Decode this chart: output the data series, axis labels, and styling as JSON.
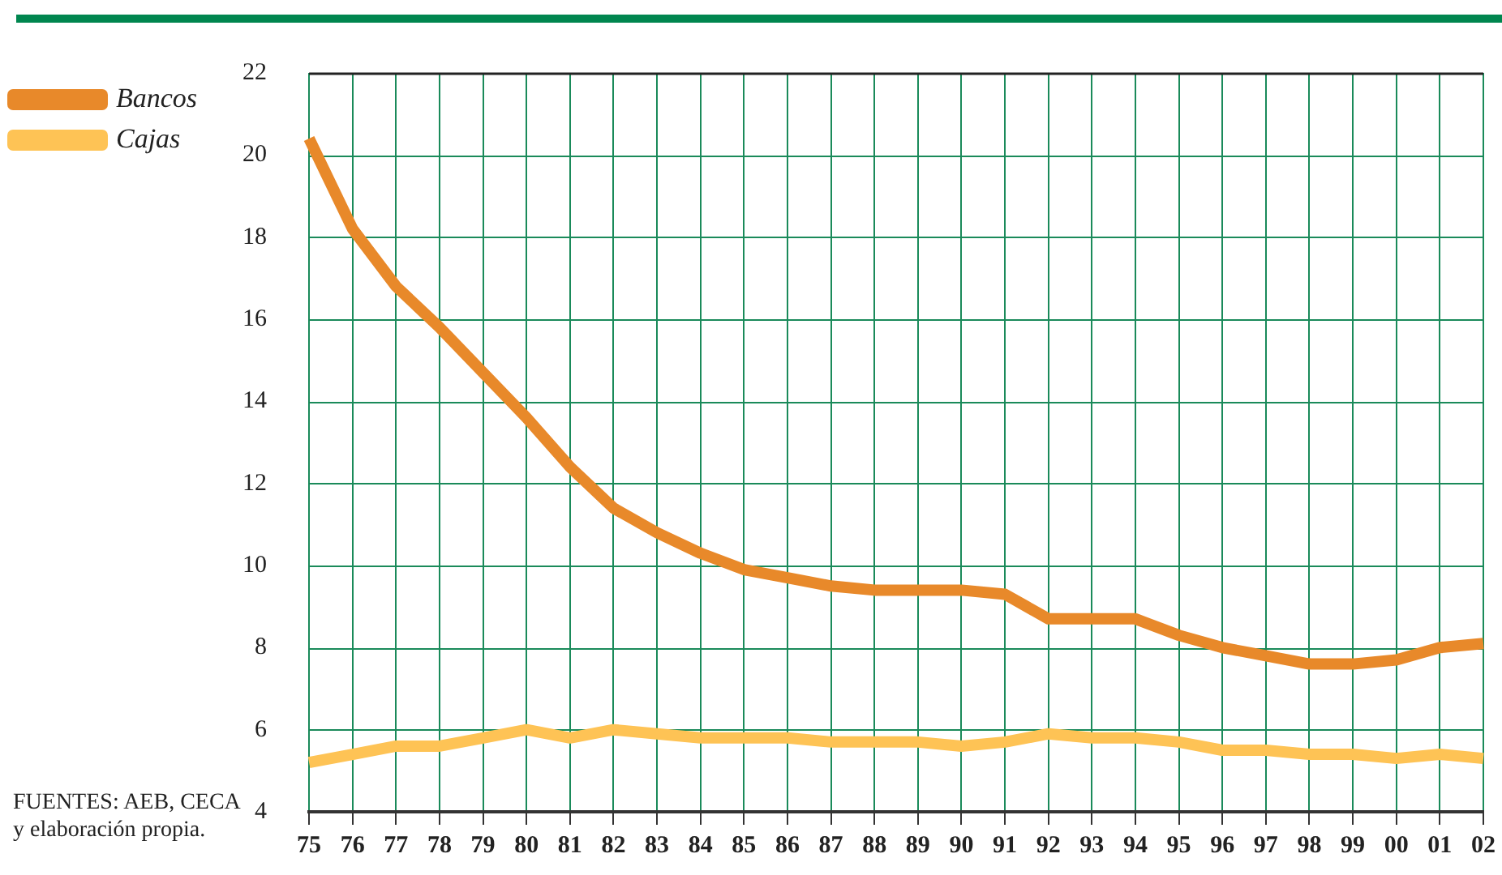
{
  "chart_data": {
    "type": "line",
    "categories": [
      "75",
      "76",
      "77",
      "78",
      "79",
      "80",
      "81",
      "82",
      "83",
      "84",
      "85",
      "86",
      "87",
      "88",
      "89",
      "90",
      "91",
      "92",
      "93",
      "94",
      "95",
      "96",
      "97",
      "98",
      "99",
      "00",
      "01",
      "02"
    ],
    "series": [
      {
        "name": "Bancos",
        "color": "#e8892a",
        "values": [
          20.4,
          18.2,
          16.8,
          15.8,
          14.7,
          13.6,
          12.4,
          11.4,
          10.8,
          10.3,
          9.9,
          9.7,
          9.5,
          9.4,
          9.4,
          9.4,
          9.3,
          8.7,
          8.7,
          8.7,
          8.3,
          8.0,
          7.8,
          7.6,
          7.6,
          7.7,
          8.0,
          8.1
        ]
      },
      {
        "name": "Cajas",
        "color": "#fec355",
        "values": [
          5.2,
          5.4,
          5.6,
          5.6,
          5.8,
          6.0,
          5.8,
          6.0,
          5.9,
          5.8,
          5.8,
          5.8,
          5.7,
          5.7,
          5.7,
          5.6,
          5.7,
          5.9,
          5.8,
          5.8,
          5.7,
          5.5,
          5.5,
          5.4,
          5.4,
          5.3,
          5.4,
          5.3
        ]
      }
    ],
    "ylim": [
      4,
      22
    ],
    "yticks": [
      4,
      6,
      8,
      10,
      12,
      14,
      16,
      18,
      20,
      22
    ],
    "grid": true,
    "legend": "top left",
    "marker": "none",
    "line_style": "solid",
    "annotations": [
      "FUENTES: AEB, CECA\ny elaboración propia."
    ]
  }
}
